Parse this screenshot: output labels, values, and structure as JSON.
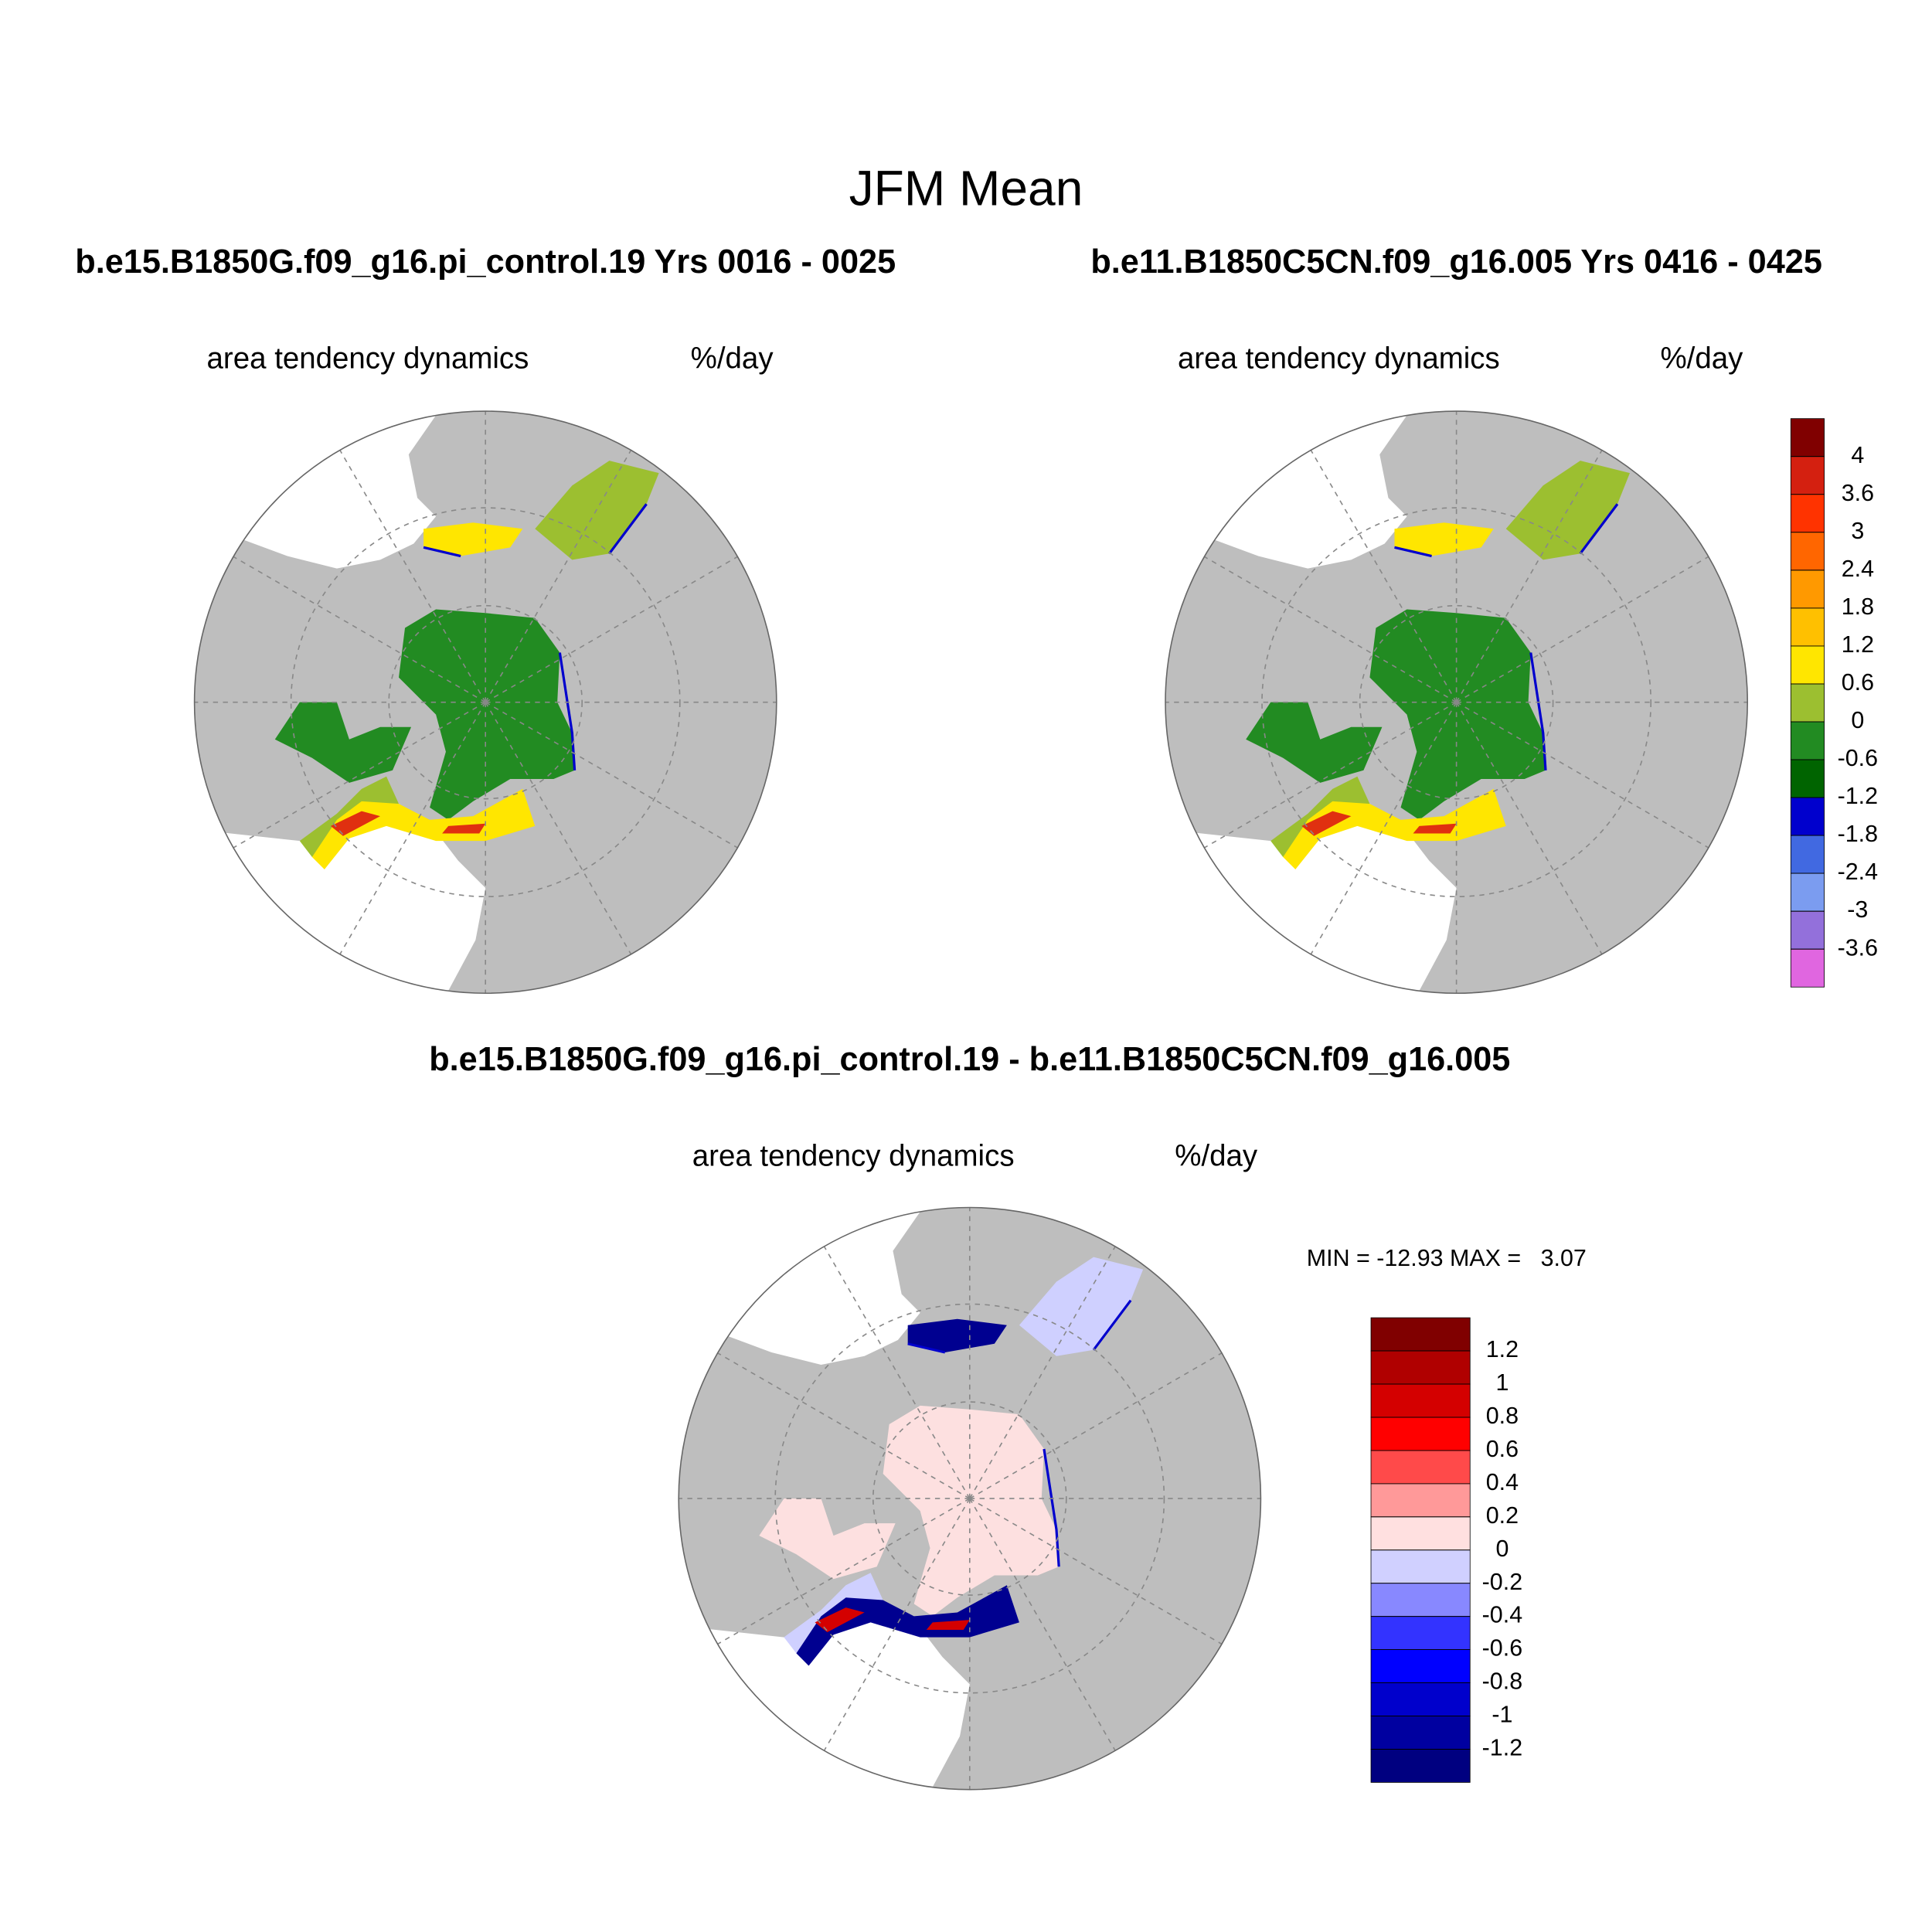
{
  "title": "JFM Mean",
  "panels": [
    {
      "title": "b.e15.B1850G.f09_g16.pi_control.19  Yrs 0016 - 0025",
      "left_label": "area tendency dynamics",
      "right_label": "%/day"
    },
    {
      "title": "b.e11.B1850C5CN.f09_g16.005  Yrs 0416 - 0425",
      "left_label": "area tendency dynamics",
      "right_label": "%/day"
    },
    {
      "title": "b.e15.B1850G.f09_g16.pi_control.19 - b.e11.B1850C5CN.f09_g16.005",
      "left_label": "area tendency dynamics",
      "right_label": "%/day",
      "stats": "MIN = -12.93 MAX =   3.07"
    }
  ],
  "colorbars": [
    {
      "ticks": [
        4,
        3.6,
        3,
        2.4,
        1.8,
        1.2,
        0.6,
        0,
        -0.6,
        -1.2,
        -1.8,
        -2.4,
        -3,
        -3.6
      ],
      "colors": [
        "#800000",
        "#d42010",
        "#ff3300",
        "#ff6600",
        "#ff9900",
        "#ffc000",
        "#ffe600",
        "#9cbf30",
        "#228b22",
        "#006400",
        "#0000cd",
        "#4169e1",
        "#7b9cf0",
        "#9370db",
        "#e066e0"
      ]
    },
    {
      "ticks": [
        1.2,
        1,
        0.8,
        0.6,
        0.4,
        0.2,
        0,
        -0.2,
        -0.4,
        -0.6,
        -0.8,
        -1,
        -1.2
      ],
      "colors": [
        "#800000",
        "#b00000",
        "#d40000",
        "#ff0000",
        "#ff4a4a",
        "#ff9999",
        "#ffe0e0",
        "#d0d0ff",
        "#8888ff",
        "#3333ff",
        "#0000ff",
        "#0000cc",
        "#0000a0",
        "#000080"
      ]
    }
  ]
}
